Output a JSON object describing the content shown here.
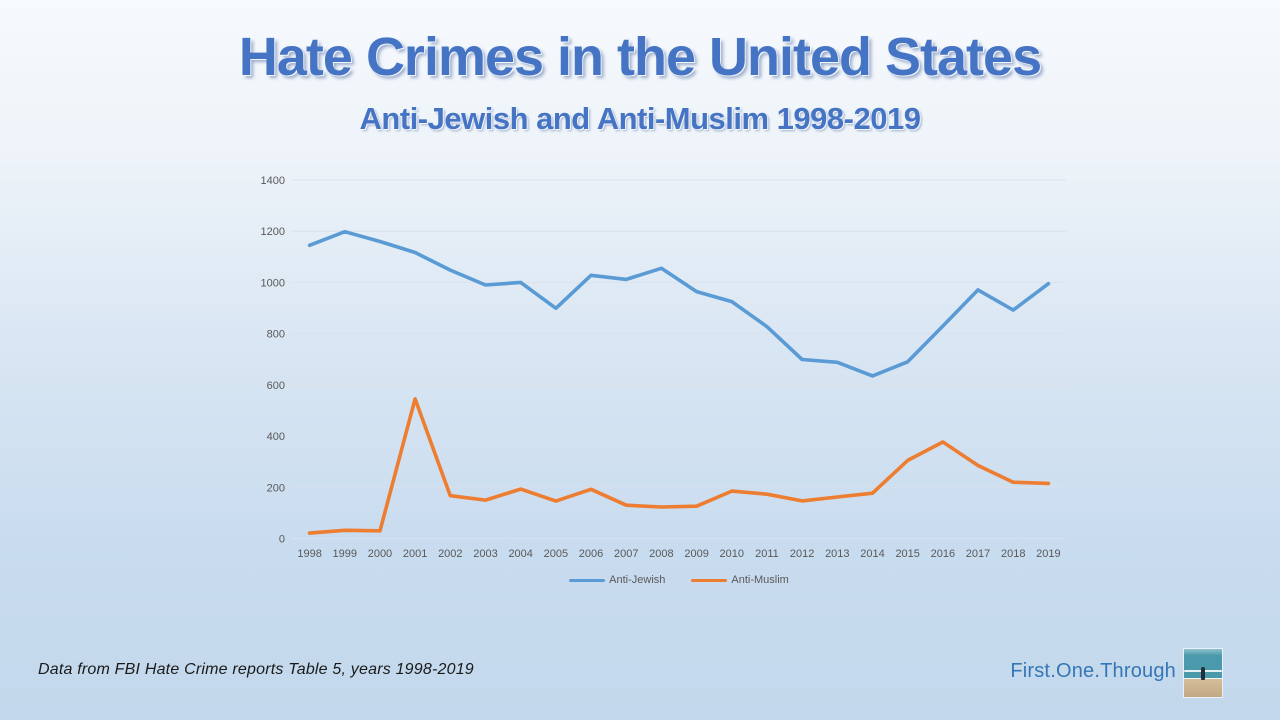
{
  "slide": {
    "title": "Hate Crimes in the United States",
    "subtitle": "Anti-Jewish and Anti-Muslim 1998-2019"
  },
  "footer": {
    "credit": "Data from FBI Hate Crime reports Table 5, years 1998-2019",
    "brand": "First.One.Through"
  },
  "logo": {
    "name": "beach-figure-photo",
    "sea": "#4a9aab",
    "sea_light": "#8fc0cd",
    "sand": "#d3bd99",
    "sand_dark": "#c3a983",
    "person": "#232f3a"
  },
  "colors": {
    "title_blue": "#4574c4",
    "brand_blue": "#3577b5",
    "anti_jewish": "#5b9bd5",
    "anti_muslim": "#ed7d31",
    "axis_text": "#595959",
    "gridline": "#d9e2ec"
  },
  "chart_data": {
    "type": "line",
    "title": "",
    "xlabel": "",
    "ylabel": "",
    "categories": [
      "1998",
      "1999",
      "2000",
      "2001",
      "2002",
      "2003",
      "2004",
      "2005",
      "2006",
      "2007",
      "2008",
      "2009",
      "2010",
      "2011",
      "2012",
      "2013",
      "2014",
      "2015",
      "2016",
      "2017",
      "2018",
      "2019"
    ],
    "series": [
      {
        "name": "Anti-Jewish",
        "color_key": "anti_jewish",
        "values": [
          1145,
          1198,
          1160,
          1117,
          1048,
          990,
          1000,
          899,
          1028,
          1012,
          1055,
          964,
          925,
          827,
          699,
          688,
          635,
          690,
          830,
          971,
          892,
          995
        ]
      },
      {
        "name": "Anti-Muslim",
        "color_key": "anti_muslim",
        "values": [
          21,
          32,
          30,
          545,
          167,
          150,
          193,
          146,
          192,
          130,
          123,
          126,
          185,
          173,
          147,
          162,
          177,
          305,
          377,
          285,
          220,
          215
        ]
      }
    ],
    "ylim": [
      0,
      1400
    ],
    "yticks": [
      0,
      200,
      400,
      600,
      800,
      1000,
      1200,
      1400
    ],
    "grid": true,
    "legend_position": "bottom"
  }
}
